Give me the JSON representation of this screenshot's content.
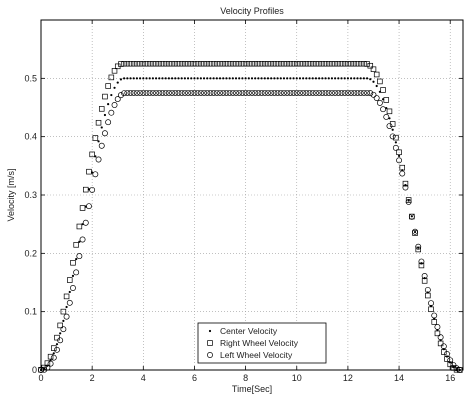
{
  "chart_data": {
    "type": "scatter",
    "title": "Velocity Profiles",
    "xlabel": "Time[Sec]",
    "ylabel": "Velocity [m/s]",
    "xlim": [
      0,
      16.5
    ],
    "ylim": [
      0,
      0.6
    ],
    "x_ticks": [
      "0",
      "2",
      "4",
      "6",
      "8",
      "10",
      "12",
      "14",
      "16"
    ],
    "y_ticks": [
      "0",
      "0.1",
      "0.2",
      "0.3",
      "0.4",
      "0.5"
    ],
    "grid": true,
    "legend_position": "bottom-center",
    "profile": {
      "t_start": 0.0,
      "t_step": 0.125,
      "t_end": 16.375,
      "accel_end": 3.25,
      "decel_start": 12.75
    },
    "series": [
      {
        "name": "Center Velocity",
        "marker": "dot",
        "plateau": 0.5,
        "time_shift": 0.0
      },
      {
        "name": "Right Wheel Velocity",
        "marker": "square",
        "plateau": 0.525,
        "time_shift": 0.06
      },
      {
        "name": "Left Wheel Velocity",
        "marker": "circle",
        "plateau": 0.475,
        "time_shift": -0.06
      }
    ]
  }
}
